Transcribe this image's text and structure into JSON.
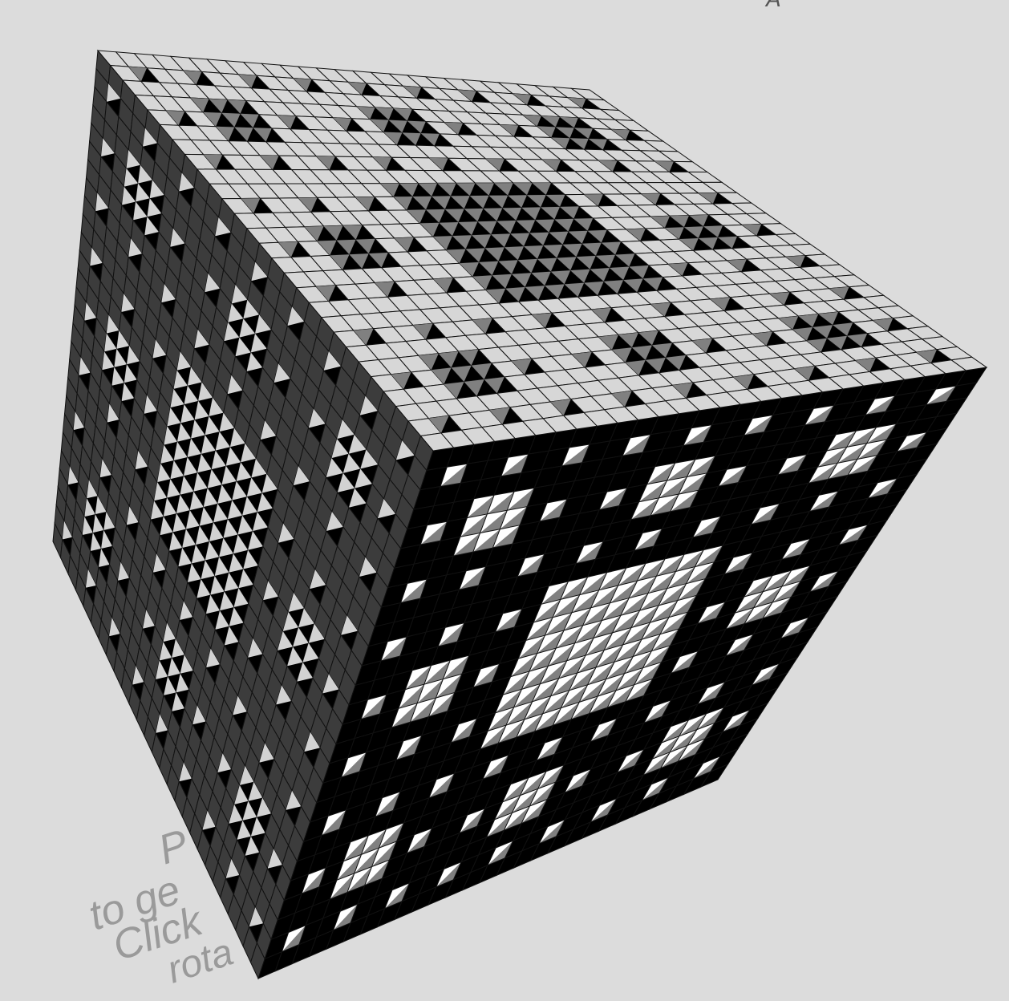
{
  "scene": {
    "background": "#dcdcdc",
    "object": "menger-sponge",
    "fractal_level": 3,
    "faces": {
      "top": {
        "solid": "#d7d7d7",
        "hole": "#000000",
        "inner": "#808080"
      },
      "left": {
        "solid": "#3c3c3c",
        "hole": "#000000",
        "inner": "#d2d2d2"
      },
      "right": {
        "solid": "#000000",
        "hole": "#ffffff",
        "inner": "#808080"
      }
    },
    "grid_line_color": "#111111"
  },
  "hint": {
    "lines": [
      "P",
      "to ge",
      "Click",
      "rota"
    ],
    "color": "#9a9a9a"
  },
  "top_fragment": {
    "text": "A"
  }
}
